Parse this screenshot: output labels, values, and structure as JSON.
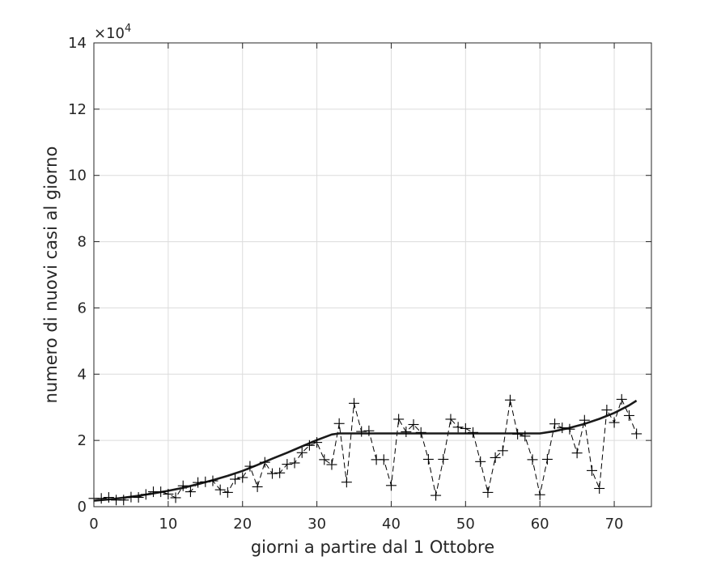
{
  "chart_data": {
    "type": "line",
    "title": "",
    "xlabel": "giorni a partire dal 1 Ottobre",
    "ylabel": "numero di nuovi casi al giorno",
    "exponent_label": "×10",
    "exponent_power": "4",
    "xlim": [
      0,
      75
    ],
    "ylim": [
      0,
      140000
    ],
    "x_ticks": [
      0,
      10,
      20,
      30,
      40,
      50,
      60,
      70
    ],
    "y_ticks": [
      0,
      20000,
      40000,
      60000,
      80000,
      100000,
      120000,
      140000
    ],
    "x_tick_labels": [
      "0",
      "10",
      "20",
      "30",
      "40",
      "50",
      "60",
      "70"
    ],
    "y_tick_labels": [
      "0",
      "2",
      "4",
      "6",
      "8",
      "10",
      "12",
      "14"
    ],
    "grid": true,
    "series": [
      {
        "style": "dashed-with-plus-markers",
        "color": "#000000",
        "x": [
          0,
          1,
          2,
          3,
          4,
          5,
          6,
          7,
          8,
          9,
          10,
          11,
          12,
          13,
          14,
          15,
          16,
          17,
          18,
          19,
          20,
          21,
          22,
          23,
          24,
          25,
          26,
          27,
          28,
          29,
          30,
          31,
          32,
          33,
          34,
          35,
          36,
          37,
          38,
          39,
          40,
          41,
          42,
          43,
          44,
          45,
          46,
          47,
          48,
          49,
          50,
          51,
          52,
          53,
          54,
          55,
          56,
          57,
          58,
          59,
          60,
          61,
          62,
          63,
          64,
          65,
          66,
          67,
          68,
          69,
          70,
          71,
          72,
          73
        ],
        "y": [
          2500,
          2500,
          2800,
          2000,
          2000,
          2900,
          2800,
          3700,
          4500,
          4500,
          3800,
          2700,
          6300,
          4500,
          7300,
          7500,
          7800,
          5100,
          4300,
          8300,
          8800,
          12200,
          6000,
          13400,
          10000,
          10200,
          12800,
          13200,
          16300,
          18500,
          19400,
          14200,
          12700,
          25100,
          7400,
          31200,
          22700,
          22900,
          14200,
          14200,
          6400,
          26400,
          22600,
          24800,
          22400,
          14300,
          3400,
          14300,
          26400,
          24000,
          23600,
          22400,
          13600,
          4300,
          14800,
          16900,
          32200,
          21900,
          21300,
          14200,
          3600,
          14300,
          25000,
          23800,
          23400,
          16200,
          26100,
          10900,
          5500,
          29200,
          25400,
          32400,
          27500,
          22000
        ]
      },
      {
        "style": "solid-model-fit",
        "color": "#1a1a1a",
        "x": [
          0,
          2,
          4,
          6,
          8,
          10,
          12,
          14,
          16,
          18,
          20,
          22,
          24,
          26,
          28,
          30,
          32,
          33,
          40,
          50,
          60,
          62,
          64,
          66,
          68,
          70,
          72,
          73
        ],
        "y": [
          1800,
          2200,
          2700,
          3300,
          4000,
          4800,
          5700,
          6800,
          8000,
          9300,
          10800,
          12600,
          14500,
          16300,
          18200,
          20100,
          21800,
          22100,
          22100,
          22100,
          22100,
          22800,
          23800,
          25000,
          26500,
          28300,
          30600,
          32000
        ]
      }
    ]
  }
}
